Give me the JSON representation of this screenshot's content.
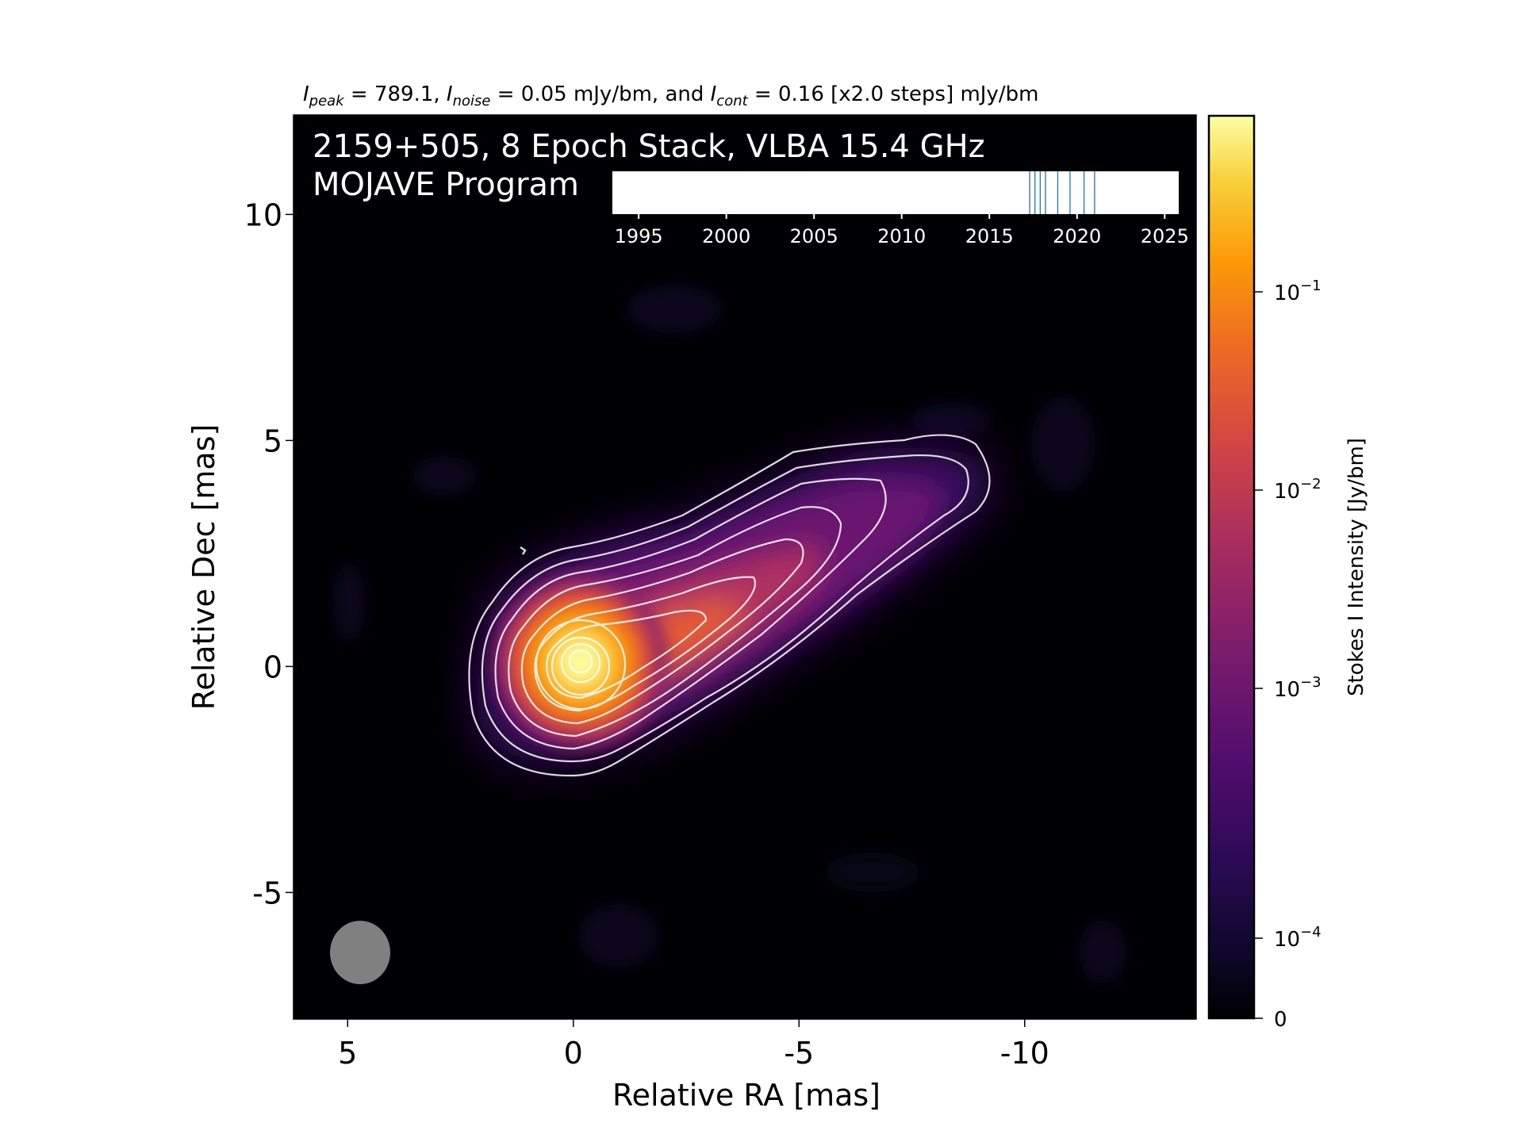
{
  "chart_data": {
    "type": "heatmap",
    "header": {
      "peak_symbol": "I",
      "peak_sub": "peak",
      "peak_val": " = 789.1, ",
      "noise_symbol": "I",
      "noise_sub": "noise",
      "noise_val": " = 0.05 mJy/bm, and ",
      "cont_symbol": "I",
      "cont_sub": "cont",
      "cont_val": " = 0.16 [x2.0 steps] mJy/bm"
    },
    "title_line1": "2159+505, 8 Epoch Stack, VLBA 15.4 GHz",
    "title_line2": "MOJAVE Program",
    "xlabel": "Relative RA [mas]",
    "ylabel": "Relative Dec [mas]",
    "xlim": [
      6.2,
      -13.8
    ],
    "ylim": [
      -7.8,
      12.2
    ],
    "x_ticks": [
      {
        "value": 5,
        "label": "5"
      },
      {
        "value": 0,
        "label": "0"
      },
      {
        "value": -5,
        "label": "-5"
      },
      {
        "value": -10,
        "label": "-10"
      }
    ],
    "y_ticks": [
      {
        "value": 10,
        "label": "10"
      },
      {
        "value": 5,
        "label": "5"
      },
      {
        "value": 0,
        "label": "0"
      },
      {
        "value": -5,
        "label": "-5"
      }
    ],
    "colorbar": {
      "label": "Stokes I Intensity [Jy/bm]",
      "scale": "log",
      "colormap": "inferno",
      "vmax": 0.7891,
      "ticks": [
        {
          "value": 0.1,
          "base": "10",
          "exp": "−1"
        },
        {
          "value": 0.01,
          "base": "10",
          "exp": "−2"
        },
        {
          "value": 0.001,
          "base": "10",
          "exp": "−3"
        },
        {
          "value": 0.0001,
          "base": "10",
          "exp": "−4"
        },
        {
          "value": 0,
          "base": "0",
          "exp": ""
        }
      ]
    },
    "epoch_timeline": {
      "range": [
        1993.5,
        2025.8
      ],
      "ticks": [
        1995,
        2000,
        2005,
        2010,
        2015,
        2020,
        2025
      ],
      "epochs": [
        2017.3,
        2017.6,
        2017.9,
        2018.2,
        2018.9,
        2019.6,
        2020.4,
        2021.0
      ]
    },
    "beam": {
      "ra": 4.8,
      "dec": -6.5,
      "major_mas": 1.4,
      "minor_mas": 1.3
    },
    "contour_step_factor": 2.0,
    "contour_base_mJy": 0.16,
    "colors": {
      "background": "#000004",
      "contour": "#ffffff",
      "epoch_line": "#1f77b4",
      "beam": "#808080"
    }
  }
}
